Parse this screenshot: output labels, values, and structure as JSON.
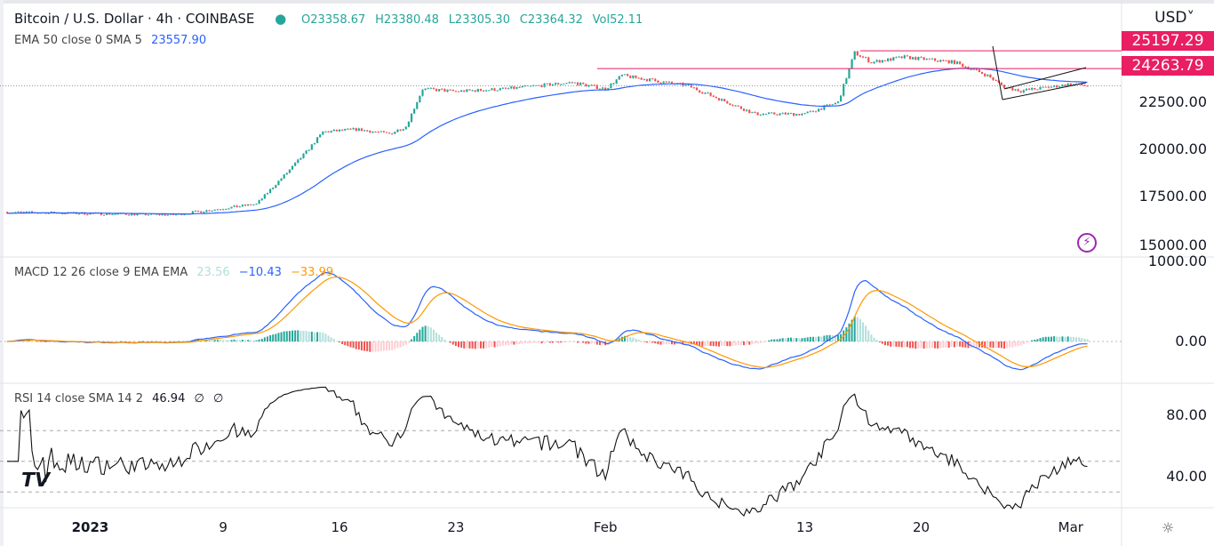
{
  "header": {
    "title": "Bitcoin / U.S. Dollar · 4h · COINBASE",
    "o": "O23358.67",
    "h": "H23380.48",
    "l": "L23305.30",
    "c": "C23364.32",
    "vol": "Vol52.11",
    "ema_label": "EMA 50 close 0 SMA 5",
    "ema_value": "23557.90"
  },
  "currency": "USD",
  "macd_legend": {
    "label": "MACD 12 26 close 9 EMA EMA",
    "hist": "23.56",
    "macd": "−10.43",
    "signal": "−33.99"
  },
  "rsi_legend": {
    "label": "RSI 14 close SMA 14 2",
    "value": "46.94",
    "n1": "∅",
    "n2": "∅"
  },
  "colors": {
    "up": "#26a69a",
    "down": "#ef5350",
    "ema": "#2962ff",
    "macd": "#2962ff",
    "signal": "#ff9800",
    "level": "#e91e63"
  },
  "chart_data": [
    {
      "type": "candlestick",
      "title": "Bitcoin / U.S. Dollar · 4h · COINBASE",
      "interval": "4h",
      "price_path": [
        [
          -5,
          16750
        ],
        [
          5,
          16600
        ],
        [
          10,
          17170
        ],
        [
          12,
          18960
        ],
        [
          13,
          19900
        ],
        [
          14,
          20940
        ],
        [
          16,
          21080
        ],
        [
          18,
          20850
        ],
        [
          19,
          21230
        ],
        [
          20,
          23200
        ],
        [
          22,
          23070
        ],
        [
          25,
          23200
        ],
        [
          29,
          23540
        ],
        [
          31,
          23200
        ],
        [
          32,
          23900
        ],
        [
          36,
          23350
        ],
        [
          40,
          21890
        ],
        [
          43,
          21890
        ],
        [
          45,
          22500
        ],
        [
          46,
          25100
        ],
        [
          47,
          24600
        ],
        [
          49,
          24860
        ],
        [
          52,
          24600
        ],
        [
          54,
          23900
        ],
        [
          55,
          23300
        ],
        [
          56,
          23100
        ],
        [
          59,
          23450
        ],
        [
          60,
          23364
        ]
      ],
      "x_unit": "days since 2023-01-01",
      "yticks": [
        "22500.00",
        "20000.00",
        "17500.00",
        "15000.00"
      ],
      "levels": [
        {
          "value": 25197.29,
          "label": "25197.29"
        },
        {
          "value": 24263.79,
          "label": "24263.79"
        }
      ],
      "ema_period": 50
    },
    {
      "type": "line",
      "title": "MACD 12 26 close 9",
      "yticks": [
        "1000.00",
        "0.00"
      ]
    },
    {
      "type": "line",
      "title": "RSI 14",
      "yticks": [
        "80.00",
        "40.00"
      ],
      "bands": [
        70,
        50,
        30
      ]
    }
  ],
  "xaxis": [
    {
      "label": "2023",
      "day": 0
    },
    {
      "label": "9",
      "day": 8
    },
    {
      "label": "16",
      "day": 15
    },
    {
      "label": "23",
      "day": 22
    },
    {
      "label": "Feb",
      "day": 31
    },
    {
      "label": "13",
      "day": 43
    },
    {
      "label": "20",
      "day": 50
    },
    {
      "label": "Mar",
      "day": 59
    }
  ]
}
